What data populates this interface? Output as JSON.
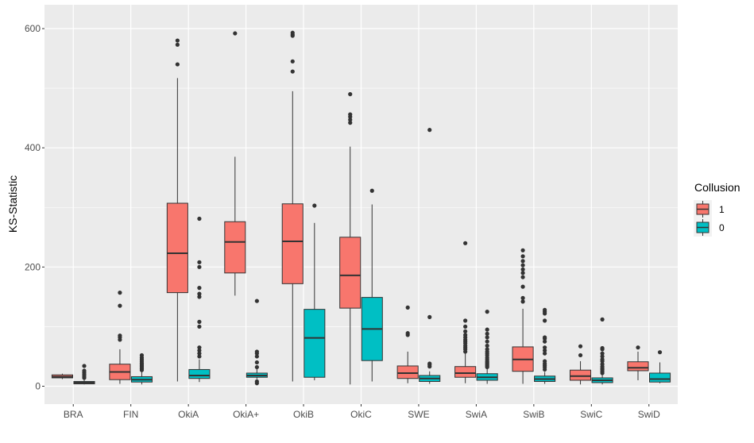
{
  "chart_data": {
    "type": "boxplot",
    "title": "",
    "xlabel": "",
    "ylabel": "KS-Statistic",
    "ylim": [
      -30,
      640
    ],
    "y_ticks": [
      0,
      200,
      400,
      600
    ],
    "y_tick_labels": [
      "0",
      "200",
      "400",
      "600"
    ],
    "grid": true,
    "legend_position": "right",
    "legend_title": "Collusion",
    "legend_entries": [
      "1",
      "0"
    ],
    "categories": [
      "BRA",
      "FIN",
      "OkiA",
      "OkiA+",
      "OkiB",
      "OkiC",
      "SWE",
      "SwiA",
      "SwiB",
      "SwiC",
      "SwiD"
    ],
    "series": [
      {
        "name": "1",
        "color": "#F8766D",
        "boxes": [
          {
            "wlo": 12,
            "q1": 14,
            "med": 16,
            "q3": 19,
            "whi": 21,
            "out": []
          },
          {
            "wlo": 4,
            "q1": 11,
            "med": 24,
            "q3": 37,
            "whi": 62,
            "out": [
              78,
              82,
              85,
              135,
              157
            ]
          },
          {
            "wlo": 8,
            "q1": 157,
            "med": 223,
            "q3": 307,
            "whi": 517,
            "out": [
              540,
              573,
              580
            ]
          },
          {
            "wlo": 152,
            "q1": 190,
            "med": 242,
            "q3": 276,
            "whi": 385,
            "out": [
              592
            ]
          },
          {
            "wlo": 8,
            "q1": 172,
            "med": 243,
            "q3": 306,
            "whi": 495,
            "out": [
              528,
              545,
              588,
              590,
              593
            ]
          },
          {
            "wlo": 3,
            "q1": 131,
            "med": 186,
            "q3": 250,
            "whi": 402,
            "out": [
              442,
              447,
              452,
              456,
              490
            ]
          },
          {
            "wlo": 5,
            "q1": 13,
            "med": 22,
            "q3": 34,
            "whi": 58,
            "out": [
              86,
              89,
              132
            ]
          },
          {
            "wlo": 5,
            "q1": 15,
            "med": 22,
            "q3": 33,
            "whi": 55,
            "out": [
              58,
              62,
              65,
              68,
              72,
              75,
              78,
              82,
              86,
              92,
              100,
              110,
              240
            ]
          },
          {
            "wlo": 4,
            "q1": 25,
            "med": 45,
            "q3": 66,
            "whi": 130,
            "out": [
              142,
              148,
              167,
              183,
              190,
              196,
              203,
              210,
              218,
              228
            ]
          },
          {
            "wlo": 3,
            "q1": 10,
            "med": 17,
            "q3": 27,
            "whi": 42,
            "out": [
              52,
              67
            ]
          },
          {
            "wlo": 10,
            "q1": 26,
            "med": 31,
            "q3": 41,
            "whi": 58,
            "out": [
              65
            ]
          }
        ]
      },
      {
        "name": "0",
        "color": "#00BFC4",
        "boxes": [
          {
            "wlo": 3,
            "q1": 4,
            "med": 6,
            "q3": 8,
            "whi": 12,
            "out": [
              14,
              17,
              20,
              23,
              26,
              34
            ]
          },
          {
            "wlo": 3,
            "q1": 7,
            "med": 11,
            "q3": 16,
            "whi": 25,
            "out": [
              27,
              29,
              31,
              33,
              35,
              37,
              39,
              42,
              45,
              48,
              52
            ]
          },
          {
            "wlo": 7,
            "q1": 13,
            "med": 18,
            "q3": 28,
            "whi": 45,
            "out": [
              50,
              55,
              60,
              65,
              100,
              108,
              150,
              155,
              165,
              200,
              208,
              281
            ]
          },
          {
            "wlo": 12,
            "q1": 15,
            "med": 18,
            "q3": 22,
            "whi": 30,
            "out": [
              5,
              8,
              32,
              40,
              50,
              55,
              58,
              143
            ]
          },
          {
            "wlo": 10,
            "q1": 15,
            "med": 81,
            "q3": 129,
            "whi": 274,
            "out": [
              303
            ]
          },
          {
            "wlo": 8,
            "q1": 43,
            "med": 96,
            "q3": 149,
            "whi": 305,
            "out": [
              328
            ]
          },
          {
            "wlo": 4,
            "q1": 8,
            "med": 13,
            "q3": 18,
            "whi": 25,
            "out": [
              33,
              36,
              38,
              116,
              430
            ]
          },
          {
            "wlo": 4,
            "q1": 10,
            "med": 15,
            "q3": 21,
            "whi": 30,
            "out": [
              32,
              34,
              36,
              38,
              40,
              42,
              45,
              48,
              52,
              55,
              58,
              62,
              68,
              75,
              82,
              88,
              95,
              125
            ]
          },
          {
            "wlo": 4,
            "q1": 8,
            "med": 12,
            "q3": 17,
            "whi": 24,
            "out": [
              28,
              32,
              35,
              38,
              42,
              55,
              60,
              65,
              75,
              80,
              82,
              110,
              122,
              125,
              128
            ]
          },
          {
            "wlo": 3,
            "q1": 6,
            "med": 10,
            "q3": 14,
            "whi": 20,
            "out": [
              22,
              25,
              28,
              30,
              33,
              37,
              42,
              45,
              50,
              55,
              62,
              64,
              112
            ]
          },
          {
            "wlo": 5,
            "q1": 7,
            "med": 12,
            "q3": 22,
            "whi": 40,
            "out": [
              57
            ]
          }
        ]
      }
    ]
  }
}
